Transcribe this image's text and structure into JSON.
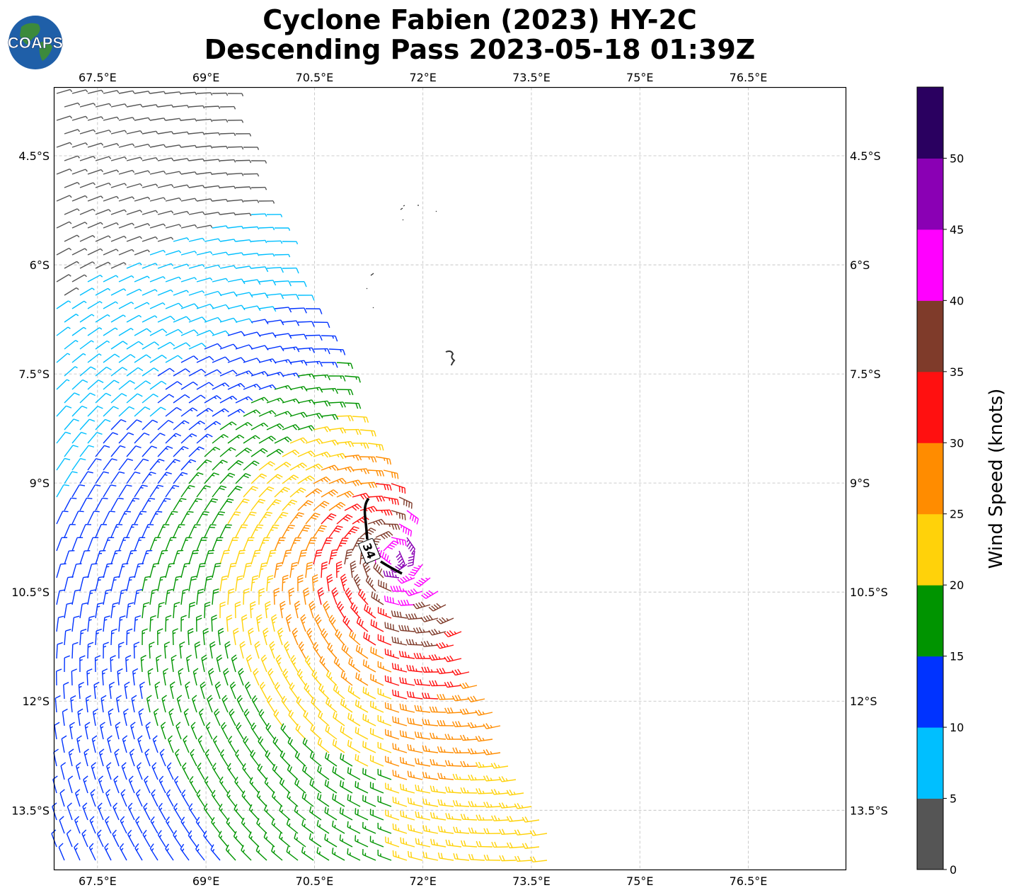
{
  "title": {
    "line1": "Cyclone Fabien (2023) HY-2C",
    "line2": "Descending Pass 2023-05-18 01:39Z"
  },
  "logo": {
    "text": "COAPS",
    "ocean_color": "#1f5fa8",
    "land_color": "#3c8a3c"
  },
  "map_axes": {
    "lon_ticks": [
      "67.5°E",
      "69°E",
      "70.5°E",
      "72°E",
      "73.5°E",
      "75°E",
      "76.5°E"
    ],
    "lon_values": [
      67.5,
      69,
      70.5,
      72,
      73.5,
      75,
      76.5
    ],
    "lat_ticks": [
      "4.5°S",
      "6°S",
      "7.5°S",
      "9°S",
      "10.5°S",
      "12°S",
      "13.5°S"
    ],
    "lat_values": [
      -4.5,
      -6,
      -7.5,
      -9,
      -10.5,
      -12,
      -13.5
    ],
    "lon_range": [
      66.9,
      77.85
    ],
    "lat_range": [
      -14.32,
      -3.56
    ],
    "grid": true
  },
  "contour": {
    "label": "34"
  },
  "colorbar": {
    "label": "Wind Speed (knots)",
    "ticks": [
      "0",
      "5",
      "10",
      "15",
      "20",
      "25",
      "30",
      "35",
      "40",
      "45",
      "50"
    ],
    "bins": [
      {
        "min": 0,
        "max": 5,
        "color": "#555555"
      },
      {
        "min": 5,
        "max": 10,
        "color": "#00bfff"
      },
      {
        "min": 10,
        "max": 15,
        "color": "#0033ff"
      },
      {
        "min": 15,
        "max": 20,
        "color": "#009400"
      },
      {
        "min": 20,
        "max": 25,
        "color": "#ffd20a"
      },
      {
        "min": 25,
        "max": 30,
        "color": "#ff8c00"
      },
      {
        "min": 30,
        "max": 35,
        "color": "#ff1010"
      },
      {
        "min": 35,
        "max": 40,
        "color": "#7f3b2a"
      },
      {
        "min": 40,
        "max": 45,
        "color": "#ff00ff"
      },
      {
        "min": 45,
        "max": 50,
        "color": "#8a00b4"
      },
      {
        "min": 50,
        "max": 55,
        "color": "#2a0060"
      }
    ]
  }
}
